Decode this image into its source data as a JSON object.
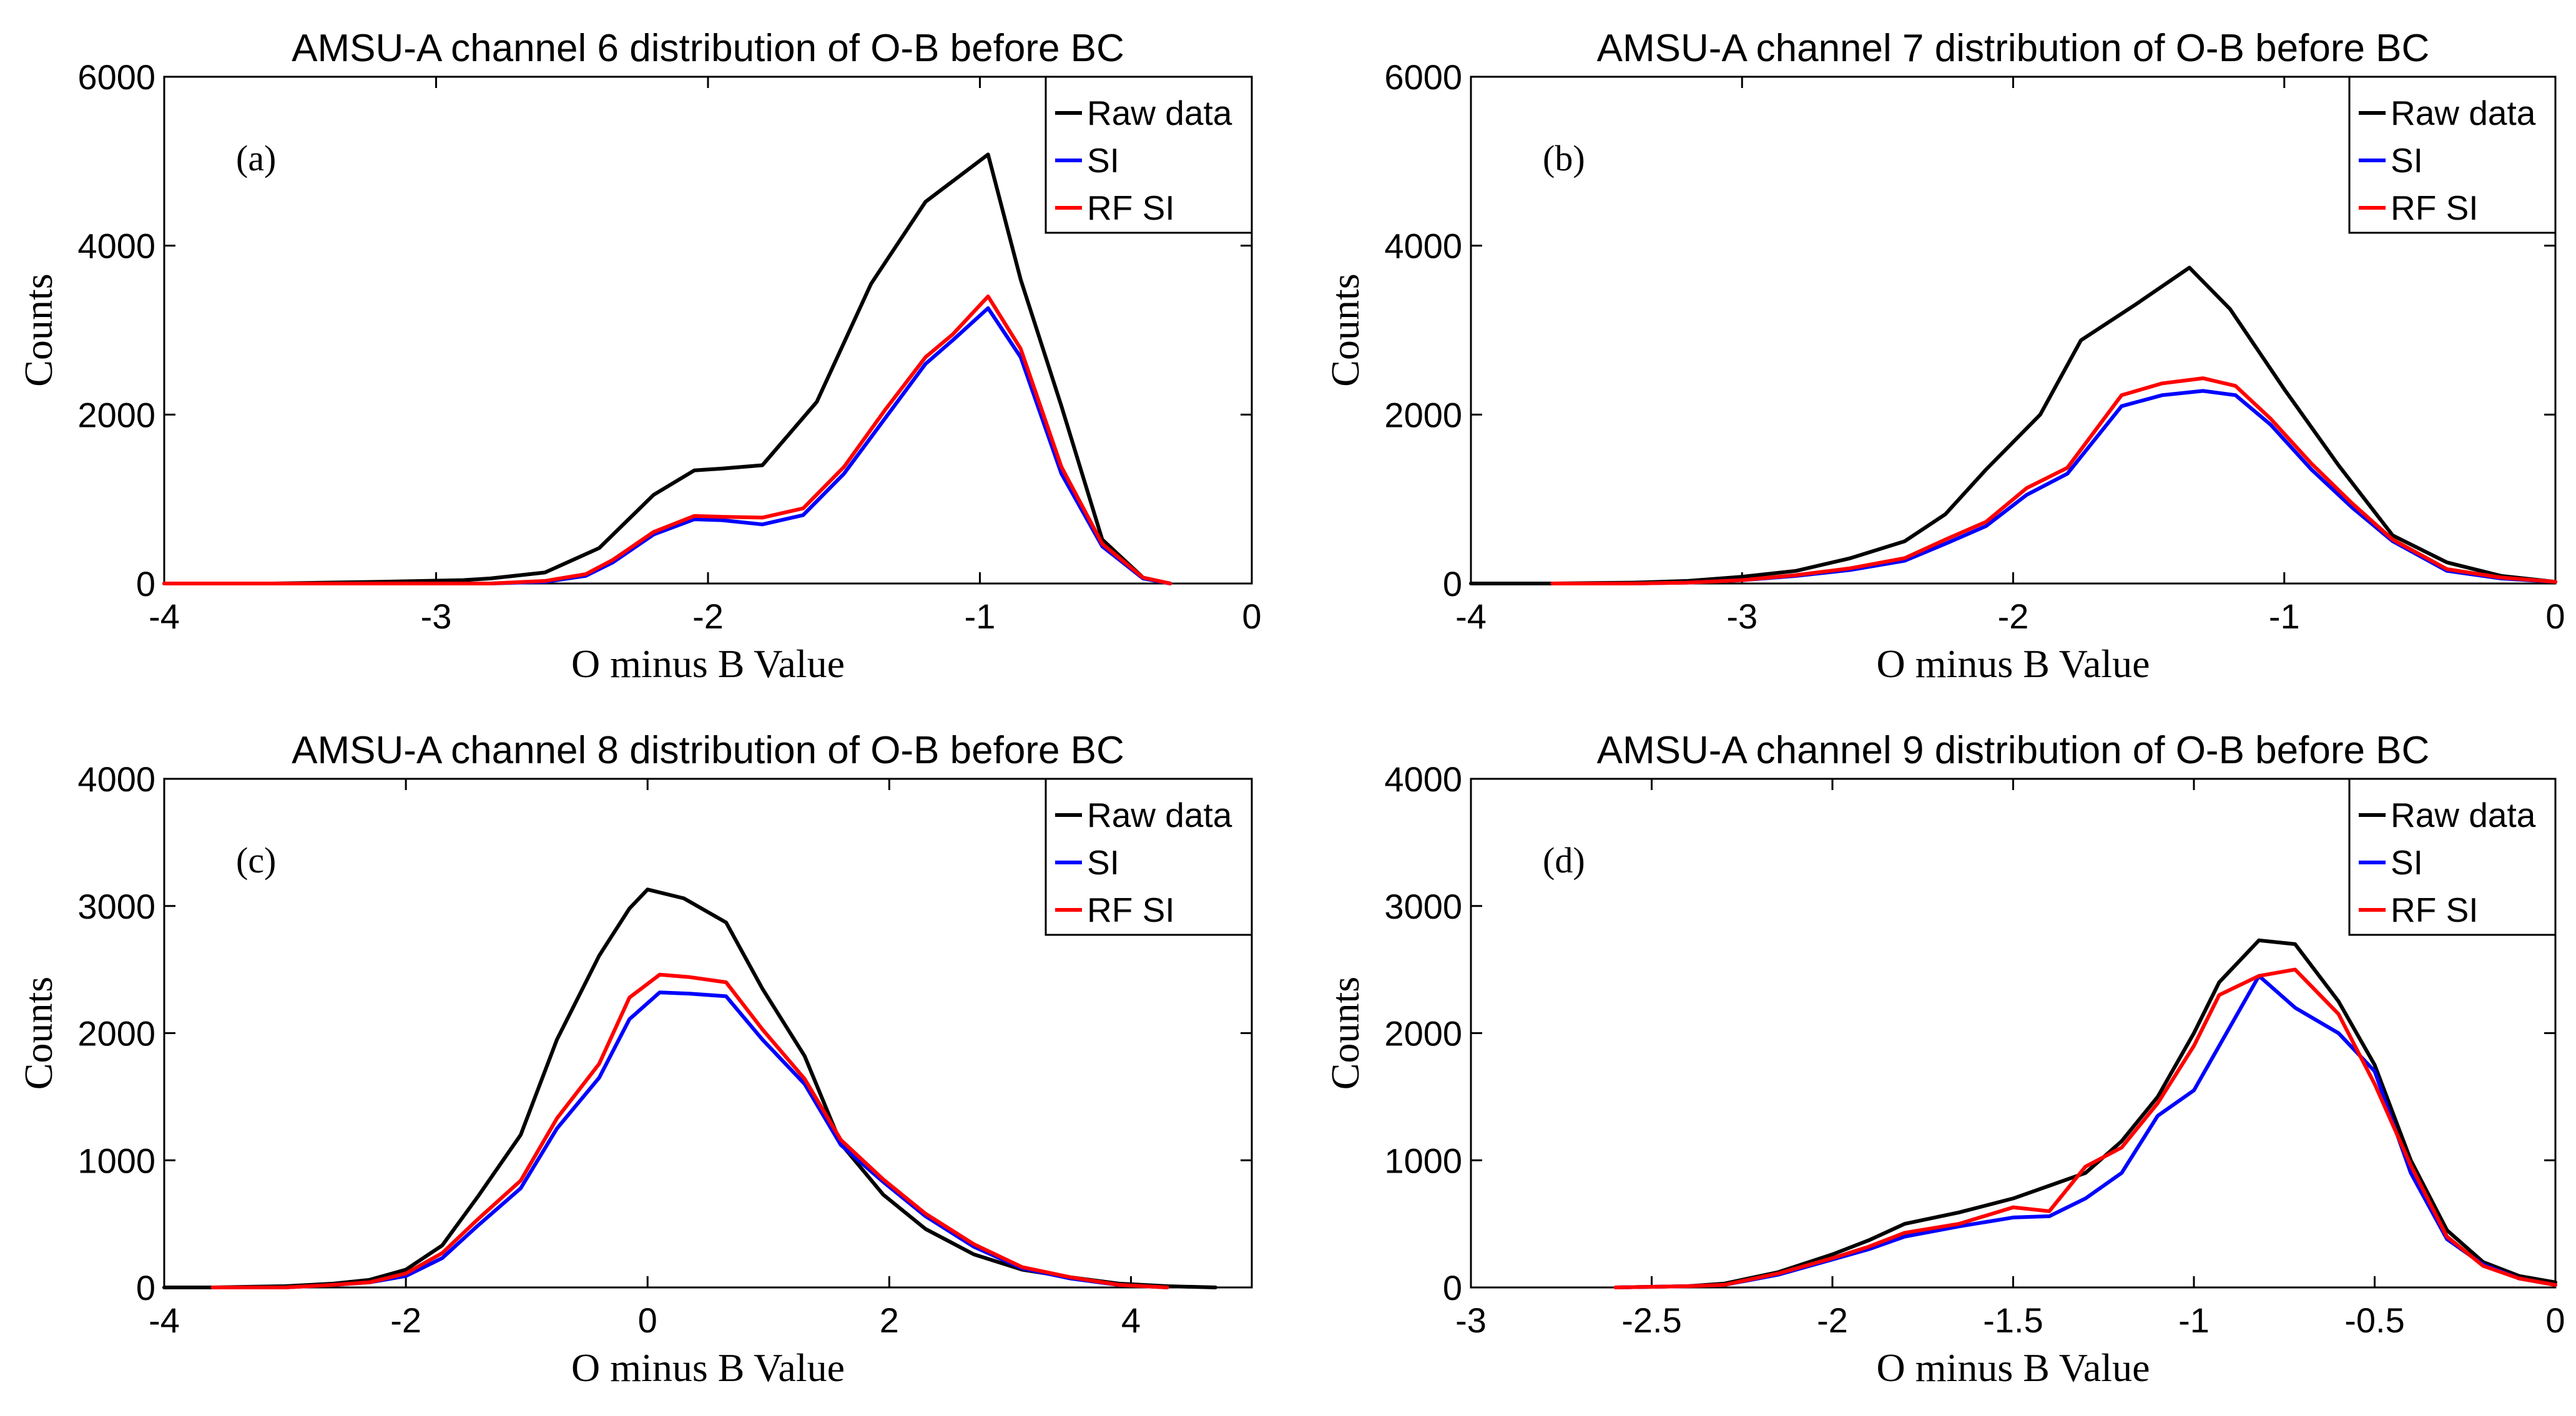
{
  "colors": {
    "raw": "#000000",
    "si": "#0000ff",
    "rfsi": "#ff0000"
  },
  "chart_data": [
    {
      "type": "line",
      "title": "AMSU-A channel 6 distribution of O-B  before BC",
      "panel_label": "(a)",
      "xlabel": "O minus B Value",
      "ylabel": "Counts",
      "xlim": [
        -4,
        0
      ],
      "ylim": [
        0,
        6000
      ],
      "xticks": [
        -4,
        -3,
        -2,
        -1,
        0
      ],
      "xtick_labels": [
        "-4",
        "-3",
        "-2",
        "-1",
        "0"
      ],
      "yticks": [
        0,
        2000,
        4000,
        6000
      ],
      "ytick_labels": [
        "0",
        "2000",
        "4000",
        "6000"
      ],
      "legend": [
        "Raw data",
        "SI",
        "RF SI"
      ],
      "legend_position": "top-right",
      "series": [
        {
          "name": "Raw data",
          "color_key": "raw",
          "x": [
            -4,
            -3.6,
            -3.2,
            -2.9,
            -2.8,
            -2.6,
            -2.4,
            -2.2,
            -2.05,
            -1.95,
            -1.8,
            -1.6,
            -1.4,
            -1.2,
            -0.97,
            -0.85,
            -0.7,
            -0.55,
            -0.4,
            -0.3
          ],
          "y": [
            0,
            0,
            20,
            40,
            60,
            130,
            420,
            1050,
            1340,
            1360,
            1400,
            2150,
            3550,
            4520,
            5080,
            3600,
            2100,
            520,
            70,
            0
          ]
        },
        {
          "name": "SI",
          "color_key": "si",
          "x": [
            -4,
            -3.2,
            -2.8,
            -2.6,
            -2.45,
            -2.35,
            -2.2,
            -2.05,
            -1.95,
            -1.8,
            -1.65,
            -1.5,
            -1.35,
            -1.2,
            -1.1,
            -0.97,
            -0.85,
            -0.7,
            -0.55,
            -0.4,
            -0.3
          ],
          "y": [
            0,
            0,
            0,
            20,
            90,
            250,
            580,
            760,
            750,
            700,
            810,
            1300,
            1950,
            2600,
            2880,
            3260,
            2680,
            1300,
            440,
            60,
            0
          ]
        },
        {
          "name": "RF SI",
          "color_key": "rfsi",
          "x": [
            -4,
            -3.2,
            -2.8,
            -2.6,
            -2.45,
            -2.35,
            -2.2,
            -2.05,
            -1.95,
            -1.8,
            -1.65,
            -1.5,
            -1.35,
            -1.2,
            -1.1,
            -0.97,
            -0.85,
            -0.7,
            -0.55,
            -0.4,
            -0.3
          ],
          "y": [
            0,
            0,
            0,
            30,
            110,
            280,
            610,
            800,
            790,
            780,
            890,
            1380,
            2050,
            2680,
            2950,
            3400,
            2780,
            1380,
            470,
            70,
            0
          ]
        }
      ]
    },
    {
      "type": "line",
      "title": "AMSU-A channel 7 distribution of O-B  before BC",
      "panel_label": "(b)",
      "xlabel": "O minus B Value",
      "ylabel": "Counts",
      "xlim": [
        -4,
        0
      ],
      "ylim": [
        0,
        6000
      ],
      "xticks": [
        -4,
        -3,
        -2,
        -1,
        0
      ],
      "xtick_labels": [
        "-4",
        "-3",
        "-2",
        "-1",
        "0"
      ],
      "yticks": [
        0,
        2000,
        4000,
        6000
      ],
      "ytick_labels": [
        "0",
        "2000",
        "4000",
        "6000"
      ],
      "legend": [
        "Raw data",
        "SI",
        "RF SI"
      ],
      "legend_position": "top-right",
      "series": [
        {
          "name": "Raw data",
          "color_key": "raw",
          "x": [
            -4,
            -3.7,
            -3.4,
            -3.2,
            -3.0,
            -2.8,
            -2.6,
            -2.4,
            -2.25,
            -2.1,
            -1.9,
            -1.75,
            -1.55,
            -1.35,
            -1.2,
            -1.0,
            -0.8,
            -0.6,
            -0.4,
            -0.2,
            0
          ],
          "y": [
            0,
            0,
            10,
            30,
            80,
            150,
            300,
            500,
            820,
            1350,
            2000,
            2880,
            3300,
            3740,
            3250,
            2300,
            1400,
            570,
            250,
            90,
            20
          ]
        },
        {
          "name": "SI",
          "color_key": "si",
          "x": [
            -3.7,
            -3.4,
            -3.2,
            -3.0,
            -2.8,
            -2.6,
            -2.4,
            -2.25,
            -2.1,
            -1.95,
            -1.8,
            -1.6,
            -1.45,
            -1.3,
            -1.18,
            -1.05,
            -0.9,
            -0.75,
            -0.6,
            -0.4,
            -0.2,
            0
          ],
          "y": [
            0,
            0,
            10,
            40,
            90,
            160,
            270,
            470,
            680,
            1050,
            1300,
            2100,
            2230,
            2280,
            2230,
            1880,
            1350,
            900,
            500,
            150,
            60,
            20
          ]
        },
        {
          "name": "RF SI",
          "color_key": "rfsi",
          "x": [
            -3.7,
            -3.4,
            -3.2,
            -3.0,
            -2.8,
            -2.6,
            -2.4,
            -2.25,
            -2.1,
            -1.95,
            -1.8,
            -1.6,
            -1.45,
            -1.3,
            -1.18,
            -1.05,
            -0.9,
            -0.75,
            -0.6,
            -0.4,
            -0.2,
            0
          ],
          "y": [
            0,
            0,
            10,
            40,
            100,
            180,
            300,
            520,
            730,
            1130,
            1370,
            2230,
            2370,
            2430,
            2340,
            1950,
            1420,
            950,
            520,
            170,
            70,
            20
          ]
        }
      ]
    },
    {
      "type": "line",
      "title": "AMSU-A channel 8 distribution of O-B  before BC",
      "panel_label": "(c)",
      "xlabel": "O minus B Value",
      "ylabel": "Counts",
      "xlim": [
        -4,
        5
      ],
      "ylim": [
        0,
        4000
      ],
      "xticks": [
        -4,
        -2,
        0,
        2,
        4
      ],
      "xtick_labels": [
        "-4",
        "-2",
        "0",
        "2",
        "4"
      ],
      "yticks": [
        0,
        1000,
        2000,
        3000,
        4000
      ],
      "ytick_labels": [
        "0",
        "1000",
        "2000",
        "3000",
        "4000"
      ],
      "legend": [
        "Raw data",
        "SI",
        "RF SI"
      ],
      "legend_position": "top-right",
      "series": [
        {
          "name": "Raw data",
          "color_key": "raw",
          "x": [
            -4,
            -3.6,
            -3.0,
            -2.6,
            -2.3,
            -2.0,
            -1.7,
            -1.4,
            -1.05,
            -0.75,
            -0.4,
            -0.15,
            0,
            0.3,
            0.65,
            0.95,
            1.3,
            1.6,
            1.95,
            2.3,
            2.7,
            3.1,
            3.5,
            3.9,
            4.3,
            4.7
          ],
          "y": [
            0,
            0,
            10,
            30,
            60,
            140,
            330,
            720,
            1200,
            1950,
            2610,
            2980,
            3130,
            3060,
            2870,
            2350,
            1820,
            1130,
            730,
            460,
            260,
            140,
            80,
            30,
            10,
            0
          ]
        },
        {
          "name": "SI",
          "color_key": "si",
          "x": [
            -3.6,
            -3.0,
            -2.6,
            -2.3,
            -2.0,
            -1.7,
            -1.4,
            -1.05,
            -0.75,
            -0.4,
            -0.15,
            0.1,
            0.35,
            0.65,
            0.95,
            1.3,
            1.6,
            1.95,
            2.3,
            2.7,
            3.1,
            3.5,
            3.9,
            4.3
          ],
          "y": [
            0,
            0,
            20,
            40,
            90,
            230,
            490,
            780,
            1250,
            1650,
            2110,
            2320,
            2310,
            2290,
            1950,
            1600,
            1120,
            830,
            560,
            320,
            150,
            70,
            20,
            0
          ]
        },
        {
          "name": "RF SI",
          "color_key": "rfsi",
          "x": [
            -3.6,
            -3.0,
            -2.6,
            -2.3,
            -2.0,
            -1.7,
            -1.4,
            -1.05,
            -0.75,
            -0.4,
            -0.15,
            0.1,
            0.35,
            0.65,
            0.95,
            1.3,
            1.6,
            1.95,
            2.3,
            2.7,
            3.1,
            3.5,
            3.9,
            4.3
          ],
          "y": [
            0,
            0,
            20,
            40,
            110,
            270,
            540,
            840,
            1330,
            1760,
            2280,
            2460,
            2440,
            2400,
            2030,
            1640,
            1160,
            850,
            580,
            340,
            160,
            80,
            20,
            0
          ]
        }
      ]
    },
    {
      "type": "line",
      "title": "AMSU-A channel 9 distribution of O-B  before BC",
      "panel_label": "(d)",
      "xlabel": "O minus B Value",
      "ylabel": "Counts",
      "xlim": [
        -3,
        0
      ],
      "ylim": [
        0,
        4000
      ],
      "xticks": [
        -3,
        -2.5,
        -2,
        -1.5,
        -1,
        -0.5,
        0
      ],
      "xtick_labels": [
        "-3",
        "-2.5",
        "-2",
        "-1.5",
        "-1",
        "-0.5",
        "0"
      ],
      "yticks": [
        0,
        1000,
        2000,
        3000,
        4000
      ],
      "ytick_labels": [
        "0",
        "1000",
        "2000",
        "3000",
        "4000"
      ],
      "legend": [
        "Raw data",
        "SI",
        "RF SI"
      ],
      "legend_position": "top-right",
      "series": [
        {
          "name": "Raw data",
          "color_key": "raw",
          "x": [
            -2.6,
            -2.4,
            -2.3,
            -2.15,
            -2.0,
            -1.9,
            -1.8,
            -1.65,
            -1.5,
            -1.4,
            -1.3,
            -1.2,
            -1.1,
            -1.0,
            -0.93,
            -0.82,
            -0.72,
            -0.6,
            -0.5,
            -0.4,
            -0.3,
            -0.2,
            -0.1,
            0
          ],
          "y": [
            0,
            10,
            30,
            120,
            260,
            370,
            500,
            590,
            700,
            800,
            900,
            1150,
            1500,
            2000,
            2400,
            2730,
            2700,
            2250,
            1750,
            1000,
            450,
            200,
            90,
            40
          ]
        },
        {
          "name": "SI",
          "color_key": "si",
          "x": [
            -2.6,
            -2.4,
            -2.3,
            -2.15,
            -2.0,
            -1.9,
            -1.8,
            -1.65,
            -1.5,
            -1.4,
            -1.3,
            -1.2,
            -1.1,
            -1.0,
            -0.93,
            -0.82,
            -0.72,
            -0.6,
            -0.5,
            -0.4,
            -0.3,
            -0.2,
            -0.1,
            0
          ],
          "y": [
            0,
            10,
            20,
            100,
            220,
            300,
            400,
            480,
            550,
            560,
            700,
            900,
            1350,
            1550,
            1900,
            2450,
            2200,
            2000,
            1700,
            900,
            380,
            180,
            70,
            20
          ]
        },
        {
          "name": "RF SI",
          "color_key": "rfsi",
          "x": [
            -2.6,
            -2.4,
            -2.3,
            -2.15,
            -2.0,
            -1.9,
            -1.8,
            -1.65,
            -1.5,
            -1.4,
            -1.3,
            -1.2,
            -1.1,
            -1.0,
            -0.93,
            -0.82,
            -0.72,
            -0.6,
            -0.5,
            -0.4,
            -0.3,
            -0.2,
            -0.1,
            0
          ],
          "y": [
            0,
            10,
            20,
            110,
            230,
            320,
            430,
            500,
            630,
            600,
            950,
            1100,
            1450,
            1900,
            2300,
            2450,
            2500,
            2150,
            1600,
            960,
            400,
            170,
            70,
            20
          ]
        }
      ]
    }
  ]
}
